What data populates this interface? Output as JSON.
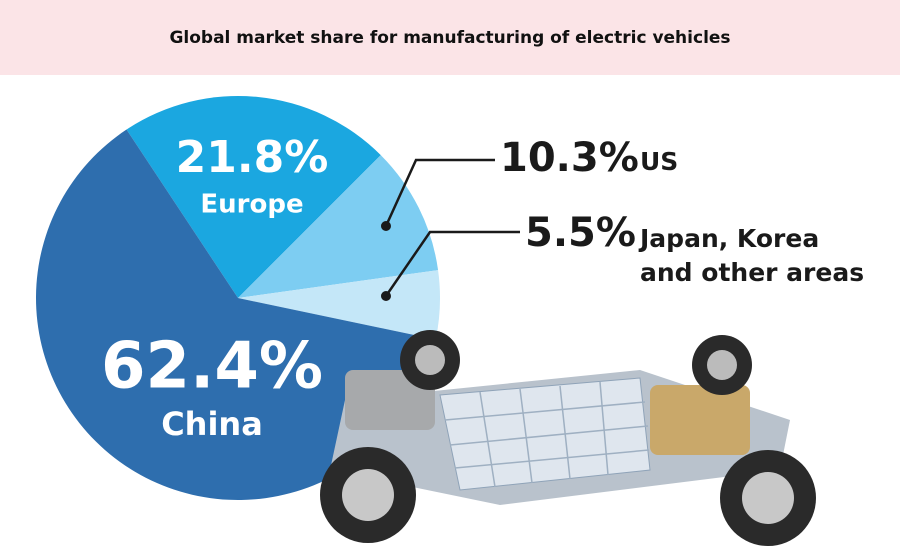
{
  "chart_data": {
    "type": "pie",
    "title": "Global market share for manufacturing of electric vehicles",
    "categories": [
      "Europe",
      "US",
      "Japan, Korea and other areas",
      "China"
    ],
    "values": [
      21.8,
      10.3,
      5.5,
      62.4
    ],
    "value_labels": [
      "21.8%",
      "10.3%",
      "5.5%",
      "62.4%"
    ],
    "colors": [
      "#1ba7e0",
      "#7dcdf2",
      "#c4e7f8",
      "#2e6eae"
    ]
  }
}
